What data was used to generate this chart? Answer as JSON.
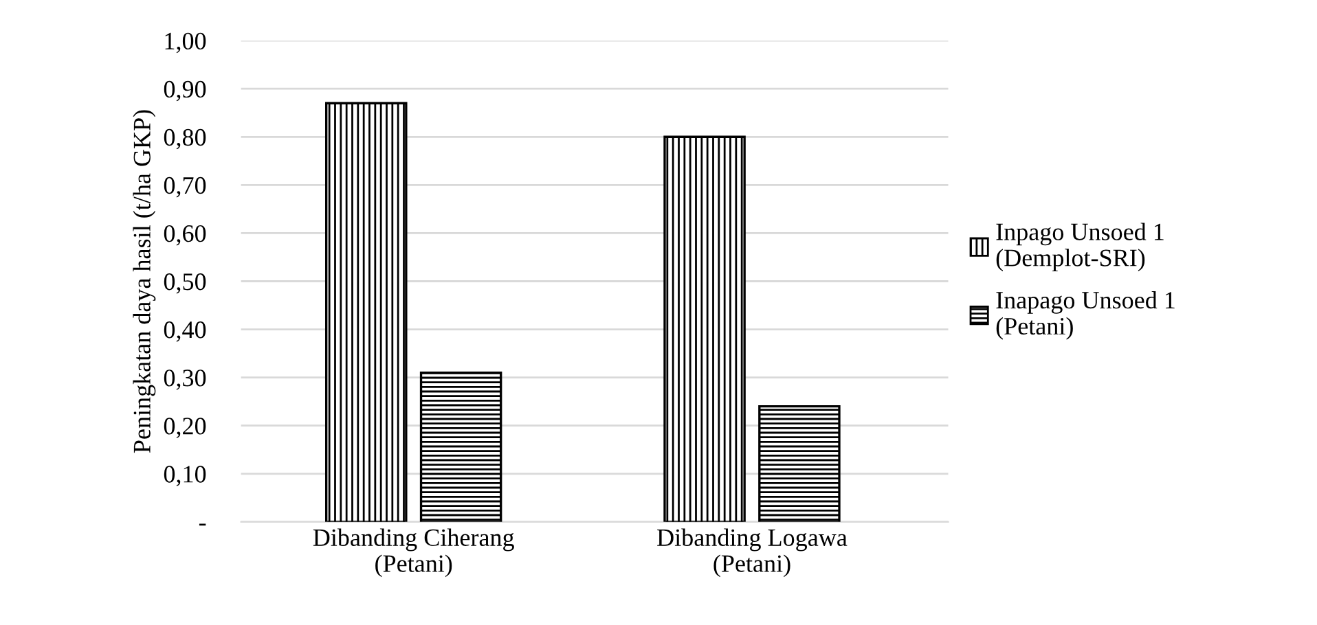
{
  "chart_data": {
    "type": "bar",
    "ylabel": "Peningkatan daya hasil (t/ha GKP)",
    "categories": [
      "Dibanding Ciherang\n(Petani)",
      "Dibanding Logawa\n(Petani)"
    ],
    "series": [
      {
        "name": "Inpago Unsoed 1\n(Demplot-SRI)",
        "color": "#000000",
        "values": [
          0.87,
          0.8
        ]
      },
      {
        "name": "Inapago Unsoed 1\n(Petani)",
        "color": "#000000",
        "values": [
          0.31,
          0.24
        ]
      }
    ],
    "ylim": [
      0,
      1.0
    ],
    "yticks": [
      {
        "value": 0,
        "label": "-"
      },
      {
        "value": 0.1,
        "label": "0,10"
      },
      {
        "value": 0.2,
        "label": "0,20"
      },
      {
        "value": 0.3,
        "label": "0,30"
      },
      {
        "value": 0.4,
        "label": "0,40"
      },
      {
        "value": 0.5,
        "label": "0,50"
      },
      {
        "value": 0.6,
        "label": "0,60"
      },
      {
        "value": 0.7,
        "label": "0,70"
      },
      {
        "value": 0.8,
        "label": "0,80"
      },
      {
        "value": 0.9,
        "label": "0,90"
      },
      {
        "value": 1.0,
        "label": "1,00"
      }
    ],
    "grid": "y",
    "legend": "right"
  }
}
